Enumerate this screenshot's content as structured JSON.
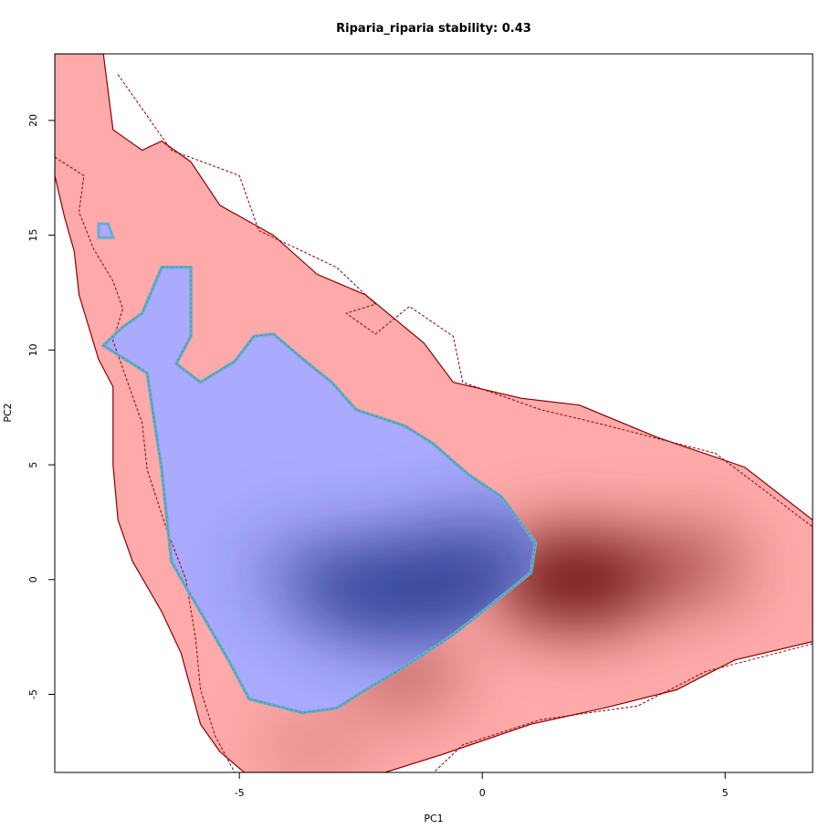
{
  "chart_data": {
    "type": "heatmap",
    "title": "Riparia_riparia stability: 0.43",
    "xlabel": "PC1",
    "ylabel": "PC2",
    "xlim": [
      -8.8,
      6.8
    ],
    "ylim": [
      -8.4,
      22.9
    ],
    "x_ticks": [
      -5,
      0,
      5
    ],
    "y_ticks": [
      -5,
      0,
      5,
      10,
      15,
      20
    ],
    "x_tick_labels": [
      "-5",
      "0",
      "5"
    ],
    "y_tick_labels": [
      "-5",
      "0",
      "5",
      "10",
      "15",
      "20"
    ],
    "grid": false,
    "legend": "none",
    "series": [
      {
        "name": "",
        "color": "#ffaaaa",
        "outline_color": "#8b0000",
        "density_color": "#5a0000",
        "polygon": [
          [
            -8.8,
            22.9
          ],
          [
            -7.8,
            22.9
          ],
          [
            -7.6,
            19.6
          ],
          [
            -7.0,
            18.7
          ],
          [
            -6.6,
            19.1
          ],
          [
            -6.0,
            18.2
          ],
          [
            -5.4,
            16.3
          ],
          [
            -4.3,
            15.0
          ],
          [
            -3.4,
            13.3
          ],
          [
            -2.4,
            12.4
          ],
          [
            -1.2,
            10.3
          ],
          [
            -0.6,
            8.6
          ],
          [
            0.8,
            7.9
          ],
          [
            2.0,
            7.6
          ],
          [
            3.6,
            6.2
          ],
          [
            5.4,
            4.9
          ],
          [
            6.8,
            2.6
          ],
          [
            6.8,
            -2.7
          ],
          [
            5.2,
            -3.5
          ],
          [
            4.0,
            -4.8
          ],
          [
            2.5,
            -5.6
          ],
          [
            1.0,
            -6.3
          ],
          [
            -0.8,
            -7.6
          ],
          [
            -2.0,
            -8.4
          ],
          [
            -4.9,
            -8.4
          ],
          [
            -5.4,
            -7.5
          ],
          [
            -5.8,
            -6.3
          ],
          [
            -6.2,
            -3.2
          ],
          [
            -6.6,
            -1.4
          ],
          [
            -7.2,
            0.8
          ],
          [
            -7.5,
            2.6
          ],
          [
            -7.6,
            5.0
          ],
          [
            -7.6,
            8.4
          ],
          [
            -7.9,
            9.6
          ],
          [
            -8.3,
            12.4
          ],
          [
            -8.4,
            14.3
          ],
          [
            -8.6,
            15.8
          ],
          [
            -8.8,
            17.6
          ]
        ],
        "dashed_contour": [
          [
            -8.8,
            18.4
          ],
          [
            -8.2,
            17.6
          ],
          [
            -8.3,
            16.0
          ],
          [
            -8.0,
            14.4
          ],
          [
            -7.6,
            13.0
          ],
          [
            -7.4,
            11.8
          ],
          [
            -7.6,
            10.4
          ],
          [
            -7.3,
            8.6
          ],
          [
            -7.0,
            6.8
          ],
          [
            -6.9,
            4.8
          ],
          [
            -6.5,
            2.2
          ],
          [
            -6.1,
            0.0
          ],
          [
            -5.9,
            -2.6
          ],
          [
            -5.8,
            -4.8
          ],
          [
            -5.5,
            -6.8
          ],
          [
            -5.1,
            -8.4
          ]
        ],
        "dashed_contour_2": [
          [
            -7.5,
            22.0
          ],
          [
            -6.4,
            18.7
          ],
          [
            -5.0,
            17.6
          ],
          [
            -4.6,
            15.2
          ],
          [
            -3.0,
            13.6
          ],
          [
            -2.2,
            12.0
          ],
          [
            -2.8,
            11.6
          ],
          [
            -2.2,
            10.7
          ],
          [
            -1.5,
            11.9
          ],
          [
            -0.6,
            10.6
          ],
          [
            -0.4,
            8.6
          ],
          [
            1.2,
            7.4
          ],
          [
            2.4,
            6.8
          ],
          [
            4.8,
            5.5
          ],
          [
            6.8,
            2.3
          ]
        ],
        "dashed_contour_3": [
          [
            6.8,
            -2.8
          ],
          [
            4.6,
            -4.0
          ],
          [
            3.2,
            -5.5
          ],
          [
            1.2,
            -6.1
          ],
          [
            -0.4,
            -7.2
          ],
          [
            -1.0,
            -8.4
          ]
        ],
        "hotspots": [
          {
            "x": 1.9,
            "y": 0.0,
            "strength": 1.0
          },
          {
            "x": 4.2,
            "y": 0.6,
            "strength": 0.55
          },
          {
            "x": -1.6,
            "y": -4.1,
            "strength": 0.45
          },
          {
            "x": -3.5,
            "y": -7.3,
            "strength": 0.25
          }
        ]
      },
      {
        "name": "",
        "color": "#aaaaff",
        "outline_color": "#6fa9d8",
        "contour_color": "#3fa85a",
        "density_color": "#2a3a8c",
        "polygon": [
          [
            -6.6,
            13.6
          ],
          [
            -6.0,
            13.6
          ],
          [
            -6.0,
            10.6
          ],
          [
            -6.3,
            9.4
          ],
          [
            -5.8,
            8.6
          ],
          [
            -5.1,
            9.5
          ],
          [
            -4.7,
            10.6
          ],
          [
            -4.3,
            10.7
          ],
          [
            -3.8,
            9.8
          ],
          [
            -3.4,
            9.1
          ],
          [
            -3.1,
            8.6
          ],
          [
            -2.6,
            7.4
          ],
          [
            -1.6,
            6.7
          ],
          [
            -1.0,
            5.9
          ],
          [
            -0.3,
            4.6
          ],
          [
            0.4,
            3.6
          ],
          [
            1.1,
            1.6
          ],
          [
            1.0,
            0.3
          ],
          [
            0.3,
            -0.9
          ],
          [
            -0.6,
            -2.4
          ],
          [
            -1.6,
            -3.8
          ],
          [
            -2.4,
            -4.8
          ],
          [
            -3.0,
            -5.6
          ],
          [
            -3.7,
            -5.8
          ],
          [
            -4.8,
            -5.2
          ],
          [
            -5.2,
            -3.6
          ],
          [
            -5.8,
            -1.4
          ],
          [
            -6.0,
            -0.7
          ],
          [
            -6.4,
            0.8
          ],
          [
            -6.6,
            4.8
          ],
          [
            -6.8,
            7.6
          ],
          [
            -6.9,
            9.0
          ],
          [
            -7.8,
            10.2
          ],
          [
            -7.4,
            11.0
          ],
          [
            -7.0,
            11.6
          ]
        ],
        "small_patch": [
          [
            -7.9,
            15.5
          ],
          [
            -7.7,
            15.5
          ],
          [
            -7.6,
            14.9
          ],
          [
            -7.9,
            14.9
          ]
        ],
        "hotspots": [
          {
            "x": -1.5,
            "y": -0.5,
            "strength": 1.0
          },
          {
            "x": 0.2,
            "y": 1.2,
            "strength": 0.6
          },
          {
            "x": -3.5,
            "y": 0.4,
            "strength": 0.35
          }
        ]
      }
    ],
    "annotations": []
  }
}
